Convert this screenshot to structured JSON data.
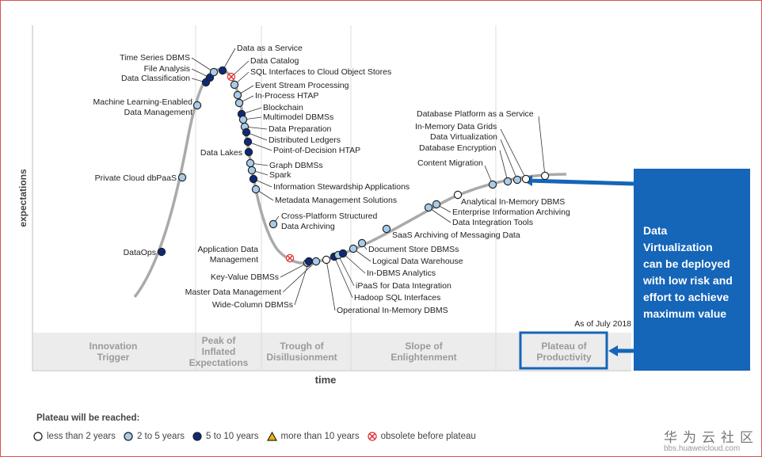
{
  "axes": {
    "y_label": "expectations",
    "x_label": "time"
  },
  "date_note": "As of July 2018",
  "phases": [
    {
      "line1": "Innovation",
      "line2": "Trigger",
      "line3": ""
    },
    {
      "line1": "Peak of",
      "line2": "Inflated",
      "line3": "Expectations"
    },
    {
      "line1": "Trough of",
      "line2": "Disillusionment",
      "line3": ""
    },
    {
      "line1": "Slope of",
      "line2": "Enlightenment",
      "line3": ""
    },
    {
      "line1": "Plateau of",
      "line2": "Productivity",
      "line3": ""
    }
  ],
  "callout": {
    "lines": [
      "Data",
      "Virtualization",
      "can be deployed",
      "with low risk and",
      "effort to achieve",
      "maximum value"
    ]
  },
  "legend": {
    "title": "Plateau will be reached:",
    "items": [
      {
        "label": "less than 2 years",
        "color": "#ffffff",
        "shape": "circle"
      },
      {
        "label": "2 to 5 years",
        "color": "#a8cdea",
        "shape": "circle"
      },
      {
        "label": "5 to 10 years",
        "color": "#0d2a7a",
        "shape": "circle"
      },
      {
        "label": "more than 10 years",
        "color": "#f0b400",
        "shape": "triangle"
      },
      {
        "label": "obsolete before plateau",
        "color": "#e03030",
        "shape": "cross"
      }
    ]
  },
  "technologies": [
    {
      "name": "DataOps",
      "category": "5-10"
    },
    {
      "name": "Private Cloud dbPaaS",
      "category": "2-5"
    },
    {
      "name": "Machine Learning-Enabled Data Management",
      "category": "2-5"
    },
    {
      "name": "Data Classification",
      "category": "5-10"
    },
    {
      "name": "File Analysis",
      "category": "5-10"
    },
    {
      "name": "Time Series DBMS",
      "category": "2-5"
    },
    {
      "name": "Data as a Service",
      "category": "5-10"
    },
    {
      "name": "Data Catalog",
      "category": "obsolete"
    },
    {
      "name": "SQL Interfaces to Cloud Object Stores",
      "category": "2-5"
    },
    {
      "name": "Event Stream Processing",
      "category": "2-5"
    },
    {
      "name": "In-Process HTAP",
      "category": "2-5"
    },
    {
      "name": "Blockchain",
      "category": "5-10"
    },
    {
      "name": "Multimodel DBMSs",
      "category": "2-5"
    },
    {
      "name": "Data Preparation",
      "category": "2-5"
    },
    {
      "name": "Distributed Ledgers",
      "category": "5-10"
    },
    {
      "name": "Point-of-Decision HTAP",
      "category": "5-10"
    },
    {
      "name": "Data Lakes",
      "category": "5-10"
    },
    {
      "name": "Graph DBMSs",
      "category": "2-5"
    },
    {
      "name": "Spark",
      "category": "2-5"
    },
    {
      "name": "Information Stewardship Applications",
      "category": "5-10"
    },
    {
      "name": "Metadata Management Solutions",
      "category": "2-5"
    },
    {
      "name": "Cross-Platform Structured Data Archiving",
      "category": "2-5"
    },
    {
      "name": "Application Data Management",
      "category": "obsolete"
    },
    {
      "name": "Key-Value DBMSs",
      "category": "2-5"
    },
    {
      "name": "Master Data Management",
      "category": "2-5"
    },
    {
      "name": "Wide-Column DBMSs",
      "category": "5-10"
    },
    {
      "name": "Operational In-Memory DBMS",
      "category": "<2"
    },
    {
      "name": "Hadoop SQL Interfaces",
      "category": "5-10"
    },
    {
      "name": "iPaaS for Data Integration",
      "category": "2-5"
    },
    {
      "name": "In-DBMS Analytics",
      "category": "5-10"
    },
    {
      "name": "Logical Data Warehouse",
      "category": "2-5"
    },
    {
      "name": "Document Store DBMSs",
      "category": "2-5"
    },
    {
      "name": "SaaS Archiving of Messaging Data",
      "category": "2-5"
    },
    {
      "name": "Data Integration Tools",
      "category": "2-5"
    },
    {
      "name": "Enterprise Information Archiving",
      "category": "2-5"
    },
    {
      "name": "Analytical In-Memory DBMS",
      "category": "<2"
    },
    {
      "name": "Content Migration",
      "category": "2-5"
    },
    {
      "name": "Database Encryption",
      "category": "2-5"
    },
    {
      "name": "Data Virtualization",
      "category": "2-5"
    },
    {
      "name": "In-Memory Data Grids",
      "category": "<2"
    },
    {
      "name": "Database Platform as a Service",
      "category": "<2"
    }
  ],
  "watermark": {
    "cn": "华为云社区",
    "url": "bbs.huaweicloud.com"
  }
}
